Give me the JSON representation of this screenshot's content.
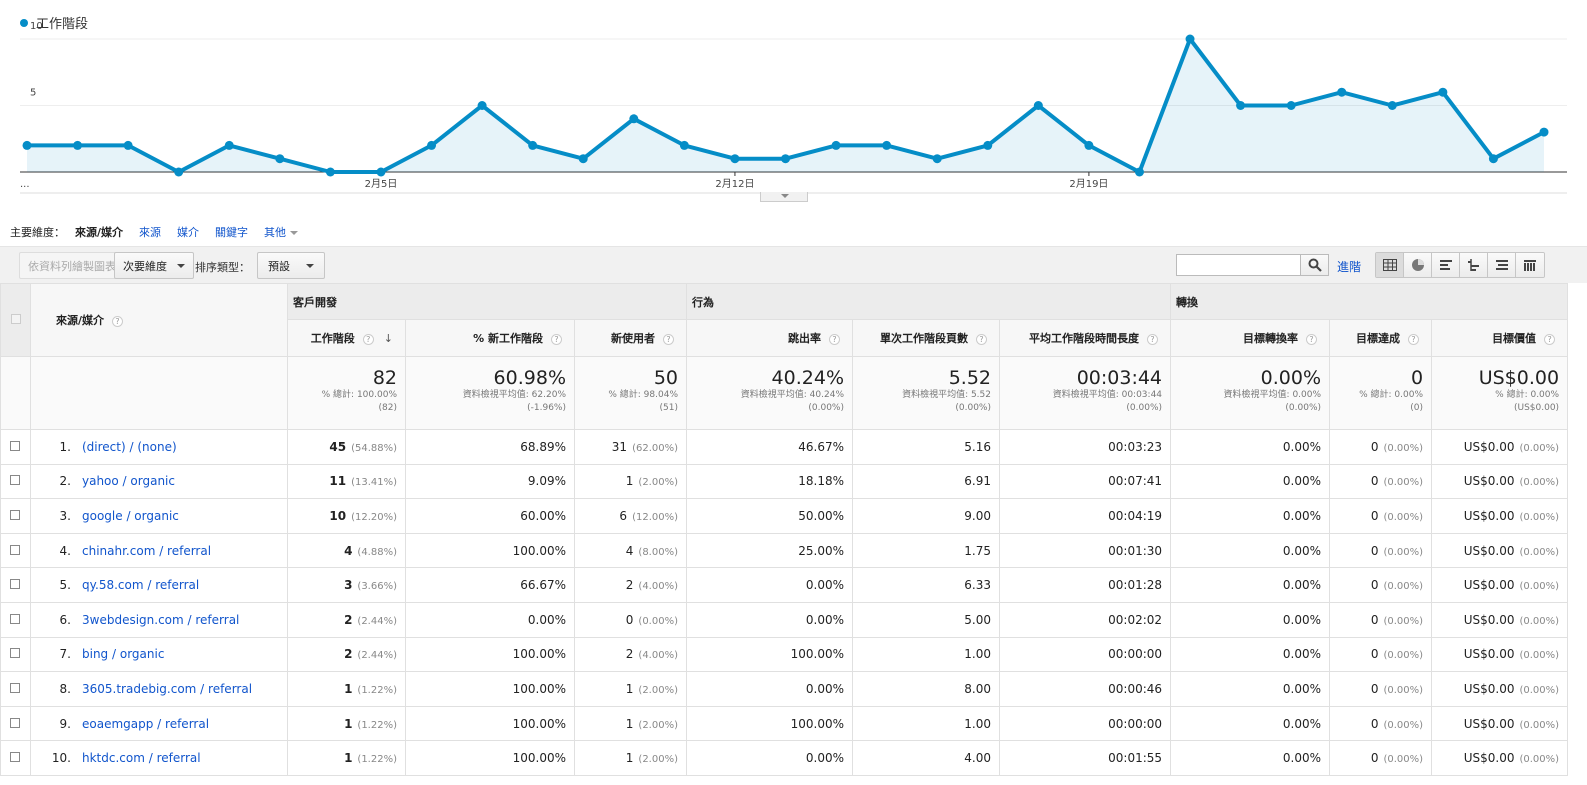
{
  "chart_data": {
    "type": "area",
    "series_name": "工作階段",
    "color": "#058dc7",
    "y_ticks": [
      "10",
      "5"
    ],
    "ylim": [
      0,
      10
    ],
    "x_tick_labels": [
      "...",
      "2月5日",
      "2月12日",
      "2月19日"
    ],
    "values": [
      2,
      2,
      2,
      0,
      2,
      1,
      0,
      0,
      2,
      5,
      2,
      1,
      4,
      2,
      1,
      1,
      2,
      2,
      1,
      2,
      5,
      2,
      0,
      10,
      5,
      5,
      6,
      5,
      6,
      1,
      3
    ]
  },
  "dims": {
    "label": "主要維度：",
    "current": "來源/媒介",
    "links": [
      "來源",
      "媒介",
      "關鍵字"
    ],
    "more": "其他"
  },
  "toolbar": {
    "plot_rows": "依資料列繪製圖表",
    "secondary": "次要維度",
    "sort_label": "排序類型：",
    "sort_value": "預設",
    "advanced": "進階"
  },
  "table": {
    "groups": [
      "客戶開發",
      "行為",
      "轉換"
    ],
    "dim_header": "來源/媒介",
    "columns": [
      "工作階段",
      "% 新工作階段",
      "新使用者",
      "跳出率",
      "單次工作階段頁數",
      "平均工作階段時間長度",
      "目標轉換率",
      "目標達成",
      "目標價值"
    ],
    "totals": [
      {
        "value": "82",
        "sub1": "% 總計: 100.00%",
        "sub2": "(82)"
      },
      {
        "value": "60.98%",
        "sub1": "資料檢視平均值: 62.20%",
        "sub2": "(-1.96%)"
      },
      {
        "value": "50",
        "sub1": "% 總計: 98.04%",
        "sub2": "(51)"
      },
      {
        "value": "40.24%",
        "sub1": "資料檢視平均值: 40.24%",
        "sub2": "(0.00%)"
      },
      {
        "value": "5.52",
        "sub1": "資料檢視平均值: 5.52",
        "sub2": "(0.00%)"
      },
      {
        "value": "00:03:44",
        "sub1": "資料檢視平均值: 00:03:44",
        "sub2": "(0.00%)"
      },
      {
        "value": "0.00%",
        "sub1": "資料檢視平均值: 0.00%",
        "sub2": "(0.00%)"
      },
      {
        "value": "0",
        "sub1": "% 總計: 0.00%",
        "sub2": "(0)"
      },
      {
        "value": "US$0.00",
        "sub1": "% 總計: 0.00%",
        "sub2": "(US$0.00)"
      }
    ],
    "rows": [
      {
        "idx": "1.",
        "source": "(direct) / (none)",
        "sessions": "45",
        "sessions_pct": "(54.88%)",
        "new_pct": "68.89%",
        "new_users": "31",
        "new_users_pct": "(62.00%)",
        "bounce": "46.67%",
        "pages": "5.16",
        "duration": "00:03:23",
        "conv_rate": "0.00%",
        "completions": "0",
        "completions_pct": "(0.00%)",
        "value": "US$0.00",
        "value_pct": "(0.00%)"
      },
      {
        "idx": "2.",
        "source": "yahoo / organic",
        "sessions": "11",
        "sessions_pct": "(13.41%)",
        "new_pct": "9.09%",
        "new_users": "1",
        "new_users_pct": "(2.00%)",
        "bounce": "18.18%",
        "pages": "6.91",
        "duration": "00:07:41",
        "conv_rate": "0.00%",
        "completions": "0",
        "completions_pct": "(0.00%)",
        "value": "US$0.00",
        "value_pct": "(0.00%)"
      },
      {
        "idx": "3.",
        "source": "google / organic",
        "sessions": "10",
        "sessions_pct": "(12.20%)",
        "new_pct": "60.00%",
        "new_users": "6",
        "new_users_pct": "(12.00%)",
        "bounce": "50.00%",
        "pages": "9.00",
        "duration": "00:04:19",
        "conv_rate": "0.00%",
        "completions": "0",
        "completions_pct": "(0.00%)",
        "value": "US$0.00",
        "value_pct": "(0.00%)"
      },
      {
        "idx": "4.",
        "source": "chinahr.com / referral",
        "sessions": "4",
        "sessions_pct": "(4.88%)",
        "new_pct": "100.00%",
        "new_users": "4",
        "new_users_pct": "(8.00%)",
        "bounce": "25.00%",
        "pages": "1.75",
        "duration": "00:01:30",
        "conv_rate": "0.00%",
        "completions": "0",
        "completions_pct": "(0.00%)",
        "value": "US$0.00",
        "value_pct": "(0.00%)"
      },
      {
        "idx": "5.",
        "source": "qy.58.com / referral",
        "sessions": "3",
        "sessions_pct": "(3.66%)",
        "new_pct": "66.67%",
        "new_users": "2",
        "new_users_pct": "(4.00%)",
        "bounce": "0.00%",
        "pages": "6.33",
        "duration": "00:01:28",
        "conv_rate": "0.00%",
        "completions": "0",
        "completions_pct": "(0.00%)",
        "value": "US$0.00",
        "value_pct": "(0.00%)"
      },
      {
        "idx": "6.",
        "source": "3webdesign.com / referral",
        "sessions": "2",
        "sessions_pct": "(2.44%)",
        "new_pct": "0.00%",
        "new_users": "0",
        "new_users_pct": "(0.00%)",
        "bounce": "0.00%",
        "pages": "5.00",
        "duration": "00:02:02",
        "conv_rate": "0.00%",
        "completions": "0",
        "completions_pct": "(0.00%)",
        "value": "US$0.00",
        "value_pct": "(0.00%)"
      },
      {
        "idx": "7.",
        "source": "bing / organic",
        "sessions": "2",
        "sessions_pct": "(2.44%)",
        "new_pct": "100.00%",
        "new_users": "2",
        "new_users_pct": "(4.00%)",
        "bounce": "100.00%",
        "pages": "1.00",
        "duration": "00:00:00",
        "conv_rate": "0.00%",
        "completions": "0",
        "completions_pct": "(0.00%)",
        "value": "US$0.00",
        "value_pct": "(0.00%)"
      },
      {
        "idx": "8.",
        "source": "3605.tradebig.com / referral",
        "sessions": "1",
        "sessions_pct": "(1.22%)",
        "new_pct": "100.00%",
        "new_users": "1",
        "new_users_pct": "(2.00%)",
        "bounce": "0.00%",
        "pages": "8.00",
        "duration": "00:00:46",
        "conv_rate": "0.00%",
        "completions": "0",
        "completions_pct": "(0.00%)",
        "value": "US$0.00",
        "value_pct": "(0.00%)"
      },
      {
        "idx": "9.",
        "source": "eoaemgapp / referral",
        "sessions": "1",
        "sessions_pct": "(1.22%)",
        "new_pct": "100.00%",
        "new_users": "1",
        "new_users_pct": "(2.00%)",
        "bounce": "100.00%",
        "pages": "1.00",
        "duration": "00:00:00",
        "conv_rate": "0.00%",
        "completions": "0",
        "completions_pct": "(0.00%)",
        "value": "US$0.00",
        "value_pct": "(0.00%)"
      },
      {
        "idx": "10.",
        "source": "hktdc.com / referral",
        "sessions": "1",
        "sessions_pct": "(1.22%)",
        "new_pct": "100.00%",
        "new_users": "1",
        "new_users_pct": "(2.00%)",
        "bounce": "0.00%",
        "pages": "4.00",
        "duration": "00:01:55",
        "conv_rate": "0.00%",
        "completions": "0",
        "completions_pct": "(0.00%)",
        "value": "US$0.00",
        "value_pct": "(0.00%)"
      }
    ]
  }
}
